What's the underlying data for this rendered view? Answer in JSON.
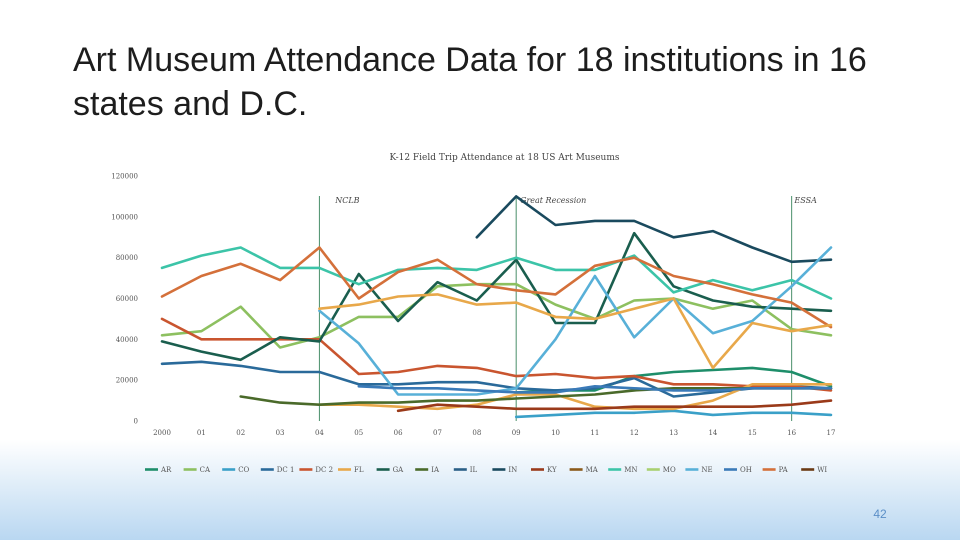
{
  "slide": {
    "title": "Art Museum Attendance Data for 18 institutions in 16 states and D.C.",
    "page_number": "42"
  },
  "colors": {
    "AR": "#1e8e6a",
    "CA": "#8dc060",
    "CO": "#3aa0c8",
    "DC1": "#2a6a9a",
    "DC2": "#c9552f",
    "FL": "#e8a84a",
    "GA": "#1a5e4e",
    "IA": "#4a6a2a",
    "IL": "#2a5f86",
    "IN": "#1a4a5e",
    "KY": "#9a3a1a",
    "MA": "#8a5a1a",
    "MN": "#3cc4a8",
    "MO": "#a8d070",
    "NE": "#58b0d8",
    "OH": "#3a7ab8",
    "PA": "#d4703a",
    "WI": "#6a3a14"
  },
  "chart_data": {
    "type": "line",
    "title": "K-12 Field Trip Attendance at 18 US Art Museums",
    "x": [
      "2000",
      "01",
      "02",
      "03",
      "04",
      "05",
      "06",
      "07",
      "08",
      "09",
      "10",
      "11",
      "12",
      "13",
      "14",
      "15",
      "16",
      "17"
    ],
    "y_ticks": [
      "0",
      "20000",
      "40000",
      "60000",
      "80000",
      "100000",
      "120000"
    ],
    "ylim": [
      0,
      120000
    ],
    "xlabel": "",
    "ylabel": "",
    "annotations": [
      {
        "label": "NCLB",
        "x_index": 4,
        "line": true
      },
      {
        "label": "Great Recession",
        "x_index": 9,
        "line": true
      },
      {
        "label": "ESSA",
        "x_index": 16,
        "line": true
      }
    ],
    "series": [
      {
        "name": "AR",
        "values": [
          null,
          null,
          null,
          null,
          null,
          null,
          null,
          null,
          null,
          14000,
          15000,
          15000,
          22000,
          24000,
          25000,
          26000,
          24000,
          17000
        ]
      },
      {
        "name": "CA",
        "values": [
          42000,
          44000,
          56000,
          36000,
          41000,
          51000,
          51000,
          66000,
          67000,
          67000,
          57000,
          50000,
          59000,
          60000,
          55000,
          59000,
          45000,
          42000
        ]
      },
      {
        "name": "CO",
        "values": [
          null,
          null,
          null,
          null,
          null,
          null,
          null,
          null,
          null,
          2000,
          3000,
          4000,
          4000,
          5000,
          3000,
          4000,
          4000,
          3000
        ]
      },
      {
        "name": "DC 1",
        "values": [
          28000,
          29000,
          27000,
          24000,
          24000,
          18000,
          18000,
          19000,
          19000,
          16000,
          15000,
          16000,
          21000,
          12000,
          14000,
          16000,
          17000,
          16000
        ]
      },
      {
        "name": "DC 2",
        "values": [
          50000,
          40000,
          40000,
          40000,
          40000,
          23000,
          24000,
          27000,
          26000,
          22000,
          23000,
          21000,
          22000,
          18000,
          18000,
          17000,
          17000,
          15000
        ]
      },
      {
        "name": "FL",
        "values": [
          null,
          null,
          null,
          null,
          8000,
          8000,
          7000,
          6000,
          8000,
          13000,
          13000,
          7000,
          6000,
          6000,
          10000,
          18000,
          18000,
          18000
        ]
      },
      {
        "name": "GA",
        "values": [
          39000,
          34000,
          30000,
          41000,
          39000,
          72000,
          49000,
          68000,
          59000,
          79000,
          48000,
          48000,
          92000,
          66000,
          59000,
          56000,
          55000,
          54000
        ]
      },
      {
        "name": "IA",
        "values": [
          null,
          null,
          12000,
          9000,
          8000,
          9000,
          9000,
          10000,
          10000,
          11000,
          12000,
          13000,
          15000,
          16000,
          16000,
          16000,
          16000,
          16000
        ]
      },
      {
        "name": "IL",
        "values": [
          null,
          null,
          null,
          null,
          null,
          null,
          null,
          null,
          null,
          null,
          null,
          null,
          null,
          null,
          null,
          null,
          null,
          null
        ]
      },
      {
        "name": "IN",
        "values": [
          null,
          null,
          null,
          null,
          null,
          null,
          null,
          null,
          90000,
          110000,
          96000,
          98000,
          98000,
          90000,
          93000,
          85000,
          78000,
          79000
        ]
      },
      {
        "name": "KY",
        "values": [
          null,
          null,
          null,
          null,
          null,
          null,
          5000,
          8000,
          7000,
          6000,
          6000,
          6000,
          7000,
          7000,
          7000,
          7000,
          8000,
          10000
        ]
      },
      {
        "name": "MA",
        "values": [
          null,
          null,
          null,
          null,
          null,
          null,
          null,
          null,
          null,
          null,
          null,
          null,
          null,
          null,
          null,
          null,
          null,
          4000
        ]
      },
      {
        "name": "MN",
        "values": [
          75000,
          81000,
          85000,
          75000,
          75000,
          67000,
          74000,
          75000,
          74000,
          80000,
          74000,
          74000,
          81000,
          63000,
          69000,
          64000,
          69000,
          60000
        ]
      },
      {
        "name": "MO",
        "values": [
          null,
          null,
          null,
          null,
          null,
          null,
          null,
          null,
          null,
          null,
          null,
          null,
          null,
          null,
          null,
          null,
          null,
          null
        ]
      },
      {
        "name": "NE",
        "values": [
          null,
          null,
          null,
          null,
          54000,
          38000,
          13000,
          13000,
          13000,
          16000,
          40000,
          71000,
          41000,
          60000,
          43000,
          49000,
          66000,
          85000
        ]
      },
      {
        "name": "OH",
        "values": [
          null,
          null,
          null,
          null,
          null,
          17000,
          16000,
          16000,
          15000,
          14000,
          14000,
          17000,
          16000,
          15000,
          15000,
          16000,
          16000,
          16000
        ]
      },
      {
        "name": "PA",
        "values": [
          61000,
          71000,
          77000,
          69000,
          85000,
          60000,
          73000,
          79000,
          67000,
          64000,
          62000,
          76000,
          80000,
          71000,
          67000,
          62000,
          58000,
          46000
        ]
      },
      {
        "name": "WI",
        "values": [
          null,
          null,
          null,
          null,
          null,
          null,
          null,
          null,
          null,
          null,
          null,
          null,
          null,
          null,
          null,
          null,
          null,
          null
        ]
      }
    ],
    "extra_series": [
      {
        "name": "FL",
        "values": [
          null,
          null,
          null,
          null,
          55000,
          57000,
          61000,
          62000,
          57000,
          58000,
          51000,
          50000,
          55000,
          60000,
          26000,
          48000,
          44000,
          47000
        ]
      }
    ],
    "legend": [
      "AR",
      "CA",
      "CO",
      "DC 1",
      "DC 2",
      "FL",
      "GA",
      "IA",
      "IL",
      "IN",
      "KY",
      "MA",
      "MN",
      "MO",
      "NE",
      "OH",
      "PA",
      "WI"
    ],
    "legend_position": "bottom"
  }
}
